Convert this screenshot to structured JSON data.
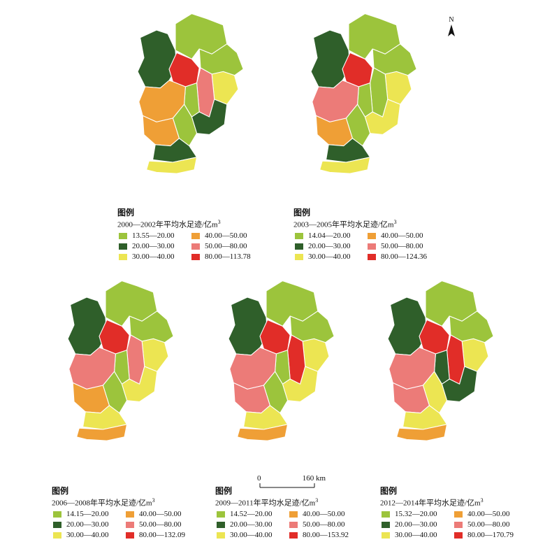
{
  "colors": {
    "c1": "#9cc43c",
    "c2": "#2f5f2a",
    "c3": "#ece552",
    "c4": "#ef9f36",
    "c5": "#ec7b78",
    "c6": "#e12d28"
  },
  "north_label": "N",
  "scale": {
    "zero": "0",
    "max": "160 km"
  },
  "panels": [
    {
      "period": "2000—2002",
      "legend_title": "图例",
      "legend_subtitle": "2000—2002年平均水足迹/亿m",
      "classes": [
        "13.55—20.00",
        "40.00—50.00",
        "20.00—30.00",
        "50.00—80.00",
        "30.00—40.00",
        "80.00—113.78"
      ],
      "region_classes": {
        "north": 1,
        "northwest": 2,
        "beijing": 6,
        "northeast": 1,
        "east": 3,
        "tianjin": 5,
        "tianjin_west": 1,
        "west": 4,
        "central": 2,
        "central_west": 1,
        "southwest": 4,
        "south": 2,
        "far_south": 3
      }
    },
    {
      "period": "2003—2005",
      "legend_title": "图例",
      "legend_subtitle": "2003—2005年平均水足迹/亿m",
      "classes": [
        "14.04—20.00",
        "40.00—50.00",
        "20.00—30.00",
        "50.00—80.00",
        "30.00—40.00",
        "80.00—124.36"
      ],
      "region_classes": {
        "north": 1,
        "northwest": 2,
        "beijing": 6,
        "northeast": 1,
        "east": 3,
        "tianjin": 1,
        "tianjin_west": 1,
        "west": 5,
        "central": 3,
        "central_west": 1,
        "southwest": 4,
        "south": 2,
        "far_south": 3
      }
    },
    {
      "period": "2006—2008",
      "legend_title": "图例",
      "legend_subtitle": "2006—2008年平均水足迹/亿m",
      "classes": [
        "14.15—20.00",
        "40.00—50.00",
        "20.00—30.00",
        "50.00—80.00",
        "30.00—40.00",
        "80.00—132.09"
      ],
      "region_classes": {
        "north": 1,
        "northwest": 2,
        "beijing": 6,
        "northeast": 1,
        "east": 3,
        "tianjin": 5,
        "tianjin_west": 1,
        "west": 5,
        "central": 3,
        "central_west": 1,
        "southwest": 4,
        "south": 3,
        "far_south": 4
      }
    },
    {
      "period": "2009—2011",
      "legend_title": "图例",
      "legend_subtitle": "2009—2011年平均水足迹/亿m",
      "classes": [
        "14.52—20.00",
        "40.00—50.00",
        "20.00—30.00",
        "50.00—80.00",
        "30.00—40.00",
        "80.00—153.92"
      ],
      "region_classes": {
        "north": 1,
        "northwest": 2,
        "beijing": 6,
        "northeast": 1,
        "east": 3,
        "tianjin": 6,
        "tianjin_west": 1,
        "west": 5,
        "central": 3,
        "central_west": 1,
        "southwest": 5,
        "south": 3,
        "far_south": 4
      }
    },
    {
      "period": "2012—2014",
      "legend_title": "图例",
      "legend_subtitle": "2012—2014年平均水足迹/亿m",
      "classes": [
        "15.32—20.00",
        "40.00—50.00",
        "20.00—30.00",
        "50.00—80.00",
        "30.00—40.00",
        "80.00—170.79"
      ],
      "region_classes": {
        "north": 1,
        "northwest": 2,
        "beijing": 6,
        "northeast": 1,
        "east": 3,
        "tianjin": 6,
        "tianjin_west": 2,
        "west": 5,
        "central": 2,
        "central_west": 3,
        "southwest": 5,
        "south": 3,
        "far_south": 4
      }
    }
  ]
}
